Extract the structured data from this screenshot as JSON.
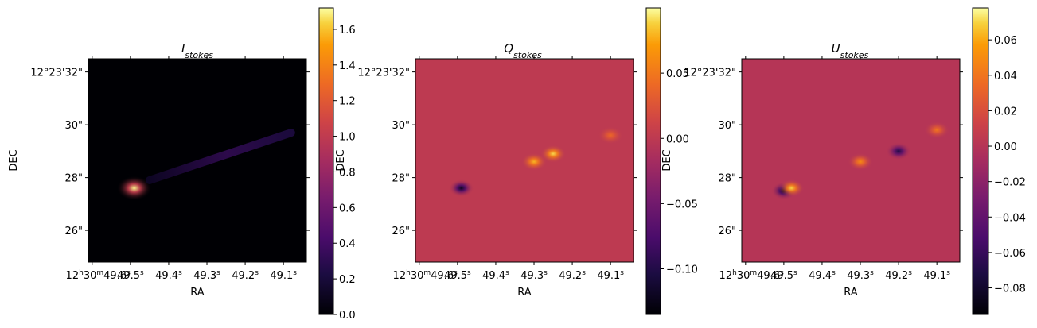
{
  "chart_data": [
    {
      "type": "heatmap",
      "title": "I",
      "title_subscript": "stokes",
      "xlabel": "RA",
      "ylabel": "DEC",
      "x_ticks": [
        {
          "h": "12",
          "m": "30",
          "s": "49.6",
          "label": "12h30m49.6s"
        },
        {
          "s": "49.5",
          "label": "49.5s"
        },
        {
          "s": "49.4",
          "label": "49.4s"
        },
        {
          "s": "49.3",
          "label": "49.3s"
        },
        {
          "s": "49.2",
          "label": "49.2s"
        },
        {
          "s": "49.1",
          "label": "49.1s"
        }
      ],
      "y_ticks": [
        "12°23'32\"",
        "30\"",
        "28\"",
        "26\""
      ],
      "colormap": "inferno",
      "colorbar": {
        "min": 0.0,
        "max": 1.72,
        "ticks": [
          "0.0",
          "0.2",
          "0.4",
          "0.6",
          "0.8",
          "1.0",
          "1.2",
          "1.4",
          "1.6"
        ],
        "tick_values": [
          0.0,
          0.2,
          0.4,
          0.6,
          0.8,
          1.0,
          1.2,
          1.4,
          1.6
        ]
      },
      "background_value": 0.0,
      "features": [
        {
          "kind": "point_source",
          "ra_s": 49.49,
          "dec_arcsec": 27.6,
          "peak": 1.7
        },
        {
          "kind": "jet",
          "from": {
            "ra_s": 49.45,
            "dec_arcsec": 27.9
          },
          "to": {
            "ra_s": 49.08,
            "dec_arcsec": 29.7
          },
          "peak": 0.45
        }
      ]
    },
    {
      "type": "heatmap",
      "title": "Q",
      "title_subscript": "stokes",
      "xlabel": "RA",
      "ylabel": "DEC",
      "x_ticks": [
        {
          "h": "12",
          "m": "30",
          "s": "49.6",
          "label": "12h30m49.6s"
        },
        {
          "s": "49.5",
          "label": "49.5s"
        },
        {
          "s": "49.4",
          "label": "49.4s"
        },
        {
          "s": "49.3",
          "label": "49.3s"
        },
        {
          "s": "49.2",
          "label": "49.2s"
        },
        {
          "s": "49.1",
          "label": "49.1s"
        }
      ],
      "y_ticks": [
        "12°23'32\"",
        "30\"",
        "28\"",
        "26\""
      ],
      "colormap": "inferno",
      "colorbar": {
        "min": -0.135,
        "max": 0.1,
        "ticks": [
          "0.05",
          "0.00",
          "−0.05",
          "−0.10"
        ],
        "tick_values": [
          0.05,
          0.0,
          -0.05,
          -0.1
        ]
      },
      "background_value": 0.0,
      "features": [
        {
          "kind": "positive_blob",
          "ra_s": 49.3,
          "dec_arcsec": 28.6,
          "value": 0.08
        },
        {
          "kind": "positive_blob",
          "ra_s": 49.25,
          "dec_arcsec": 28.9,
          "value": 0.09
        },
        {
          "kind": "positive_blob",
          "ra_s": 49.1,
          "dec_arcsec": 29.6,
          "value": 0.04
        },
        {
          "kind": "negative_blob",
          "ra_s": 49.49,
          "dec_arcsec": 27.6,
          "value": -0.12
        }
      ]
    },
    {
      "type": "heatmap",
      "title": "U",
      "title_subscript": "stokes",
      "xlabel": "RA",
      "ylabel": "DEC",
      "x_ticks": [
        {
          "h": "12",
          "m": "30",
          "s": "49.6",
          "label": "12h30m49.6s"
        },
        {
          "s": "49.5",
          "label": "49.5s"
        },
        {
          "s": "49.4",
          "label": "49.4s"
        },
        {
          "s": "49.3",
          "label": "49.3s"
        },
        {
          "s": "49.2",
          "label": "49.2s"
        },
        {
          "s": "49.1",
          "label": "49.1s"
        }
      ],
      "y_ticks": [
        "12°23'32\"",
        "30\"",
        "28\"",
        "26\""
      ],
      "colormap": "inferno",
      "colorbar": {
        "min": -0.095,
        "max": 0.078,
        "ticks": [
          "0.06",
          "0.04",
          "0.02",
          "0.00",
          "−0.02",
          "−0.04",
          "−0.06",
          "−0.08"
        ],
        "tick_values": [
          0.06,
          0.04,
          0.02,
          0.0,
          -0.02,
          -0.04,
          -0.06,
          -0.08
        ]
      },
      "background_value": 0.0,
      "features": [
        {
          "kind": "positive_blob",
          "ra_s": 49.3,
          "dec_arcsec": 28.6,
          "value": 0.05
        },
        {
          "kind": "positive_blob",
          "ra_s": 49.1,
          "dec_arcsec": 29.8,
          "value": 0.04
        },
        {
          "kind": "negative_blob",
          "ra_s": 49.2,
          "dec_arcsec": 29.0,
          "value": -0.07
        },
        {
          "kind": "negative_blob",
          "ra_s": 49.5,
          "dec_arcsec": 27.5,
          "value": -0.09
        },
        {
          "kind": "positive_blob",
          "ra_s": 49.48,
          "dec_arcsec": 27.6,
          "value": 0.07
        }
      ]
    }
  ]
}
